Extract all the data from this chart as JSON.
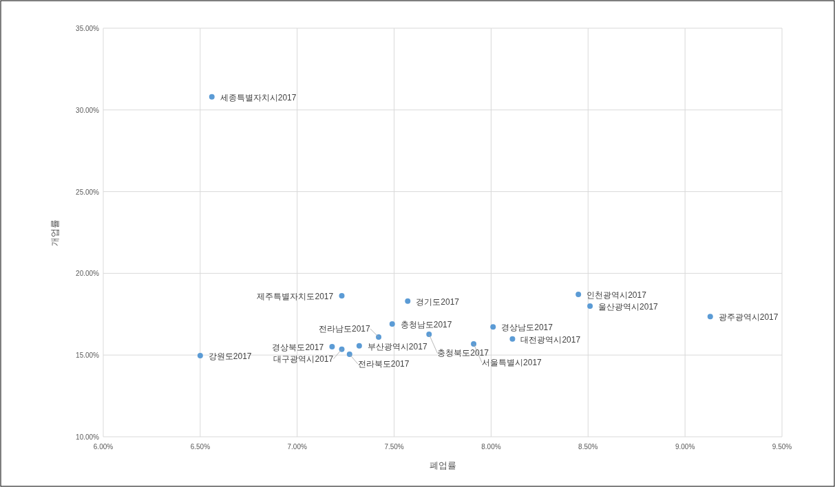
{
  "chart_data": {
    "type": "scatter",
    "xlabel": "폐업률",
    "ylabel": "개업률",
    "xlim": [
      6,
      9.5
    ],
    "ylim": [
      10,
      35
    ],
    "xticks": [
      {
        "value": 6,
        "label": "6.00%"
      },
      {
        "value": 6.5,
        "label": "6.50%"
      },
      {
        "value": 7,
        "label": "7.00%"
      },
      {
        "value": 7.5,
        "label": "7.50%"
      },
      {
        "value": 8,
        "label": "8.00%"
      },
      {
        "value": 8.5,
        "label": "8.50%"
      },
      {
        "value": 9,
        "label": "9.00%"
      },
      {
        "value": 9.5,
        "label": "9.50%"
      }
    ],
    "yticks": [
      {
        "value": 10,
        "label": "10.00%"
      },
      {
        "value": 15,
        "label": "15.00%"
      },
      {
        "value": 20,
        "label": "20.00%"
      },
      {
        "value": 25,
        "label": "25.00%"
      },
      {
        "value": 30,
        "label": "30.00%"
      },
      {
        "value": 35,
        "label": "35.00%"
      }
    ],
    "grid": true,
    "marker": "circle",
    "series": [
      {
        "color": "#5b9bd5",
        "x": [
          6.56,
          6.5,
          7.23,
          7.57,
          7.49,
          7.68,
          7.42,
          8.01,
          8.11,
          7.91,
          8.45,
          8.51,
          9.13,
          7.18,
          7.23,
          7.32,
          7.27
        ],
        "values": [
          30.8,
          14.97,
          18.63,
          18.3,
          16.9,
          16.27,
          16.1,
          16.72,
          15.99,
          15.68,
          18.71,
          18.0,
          17.36,
          15.51,
          15.36,
          15.57,
          15.05
        ]
      }
    ],
    "annotations": [
      {
        "text": "세종특별자치시2017",
        "x": 6.56,
        "y": 30.8
      },
      {
        "text": "강원도2017",
        "x": 6.5,
        "y": 14.97
      },
      {
        "text": "제주특별자치도2017",
        "x": 7.23,
        "y": 18.63
      },
      {
        "text": "경기도2017",
        "x": 7.57,
        "y": 18.3
      },
      {
        "text": "충청남도2017",
        "x": 7.49,
        "y": 16.9
      },
      {
        "text": "충청북도2017",
        "x": 7.68,
        "y": 16.27
      },
      {
        "text": "전라남도2017",
        "x": 7.42,
        "y": 16.1
      },
      {
        "text": "경상남도2017",
        "x": 8.01,
        "y": 16.72
      },
      {
        "text": "대전광역시2017",
        "x": 8.11,
        "y": 15.99
      },
      {
        "text": "서울특별시2017",
        "x": 7.91,
        "y": 15.68
      },
      {
        "text": "인천광역시2017",
        "x": 8.45,
        "y": 18.71
      },
      {
        "text": "울산광역시2017",
        "x": 8.51,
        "y": 18.0
      },
      {
        "text": "광주광역시2017",
        "x": 9.13,
        "y": 17.36
      },
      {
        "text": "경상북도2017",
        "x": 7.18,
        "y": 15.51
      },
      {
        "text": "대구광역시2017",
        "x": 7.23,
        "y": 15.36
      },
      {
        "text": "부산광역시2017",
        "x": 7.32,
        "y": 15.57
      },
      {
        "text": "전라북도2017",
        "x": 7.27,
        "y": 15.05
      }
    ]
  }
}
